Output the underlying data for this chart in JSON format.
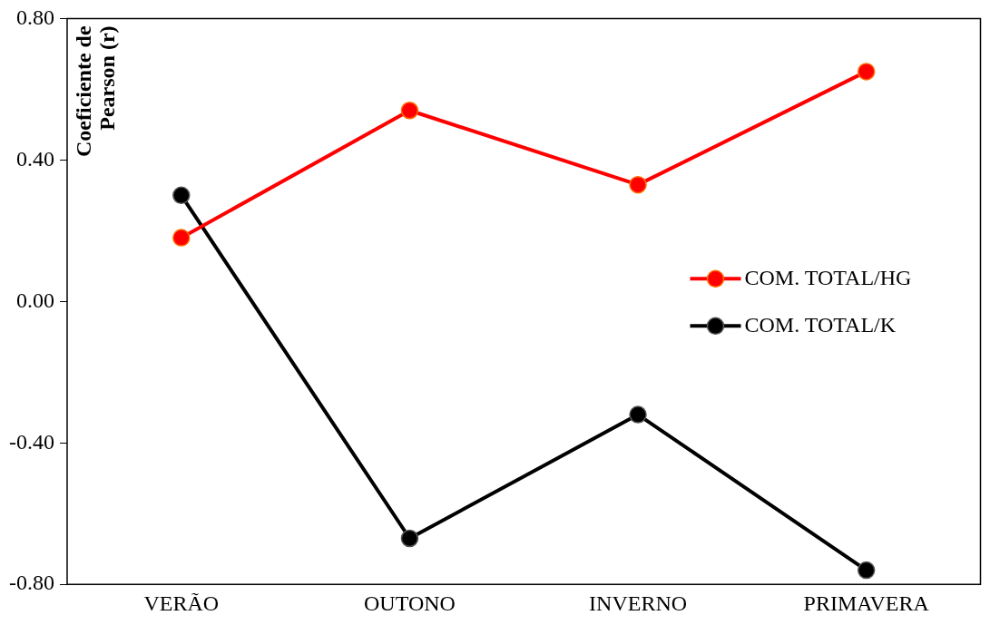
{
  "chart_data": {
    "type": "line",
    "ylabel": "Coeficiente de Pearson (r)",
    "categories": [
      "VERÃO",
      "OUTONO",
      "INVERNO",
      "PRIMAVERA"
    ],
    "series": [
      {
        "name": "COM. TOTAL/HG",
        "color": "#ff0000",
        "values": [
          0.18,
          0.54,
          0.33,
          0.65
        ]
      },
      {
        "name": "COM. TOTAL/K",
        "color": "#000000",
        "values": [
          0.3,
          -0.67,
          -0.32,
          -0.76
        ]
      }
    ],
    "ylim": [
      -0.8,
      0.8
    ],
    "yticks": [
      {
        "value": -0.8,
        "label": "-0.80"
      },
      {
        "value": -0.4,
        "label": "-0.40"
      },
      {
        "value": 0,
        "label": "0.00"
      },
      {
        "value": 0.4,
        "label": "0.40"
      },
      {
        "value": 0.8,
        "label": "0.80"
      }
    ],
    "grid": false,
    "legend": "right",
    "marker": "circle",
    "line_style": "solid"
  }
}
